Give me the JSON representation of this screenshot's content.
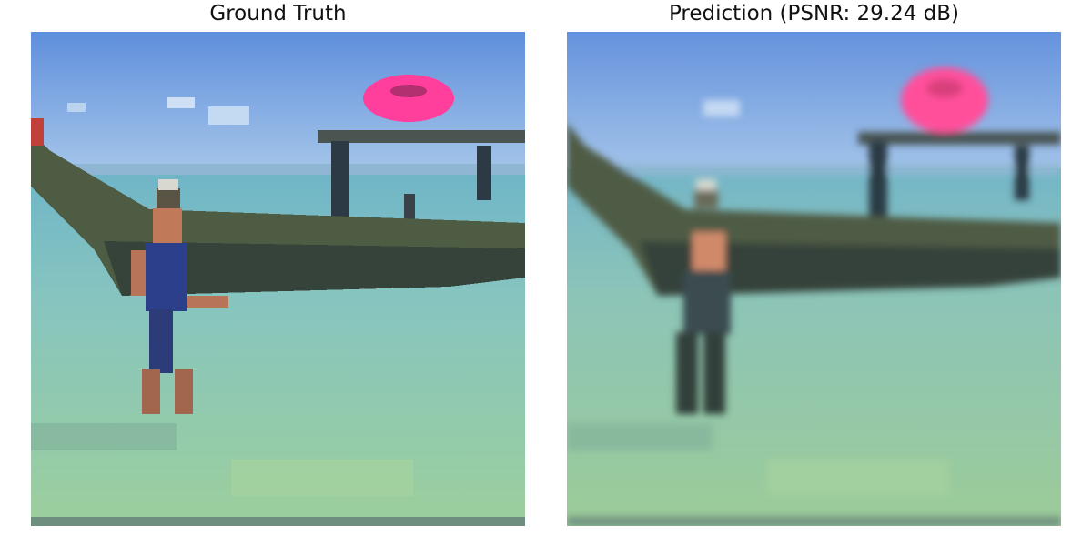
{
  "panels": [
    {
      "title": "Ground Truth"
    },
    {
      "title": "Prediction (PSNR: 29.24 dB)"
    }
  ],
  "colors": {
    "sky": "#6f9ae0",
    "sky_low": "#9ec2e6",
    "water_far": "#7fb9c9",
    "water_near": "#8cc6b0",
    "shallows": "#9bcf9a",
    "hull": "#4d5a44",
    "hull_dark": "#2f3a33",
    "float_ring": "#ff3f9b",
    "swimsuit": "#2c3f8a",
    "skin": "#c07a5a"
  }
}
